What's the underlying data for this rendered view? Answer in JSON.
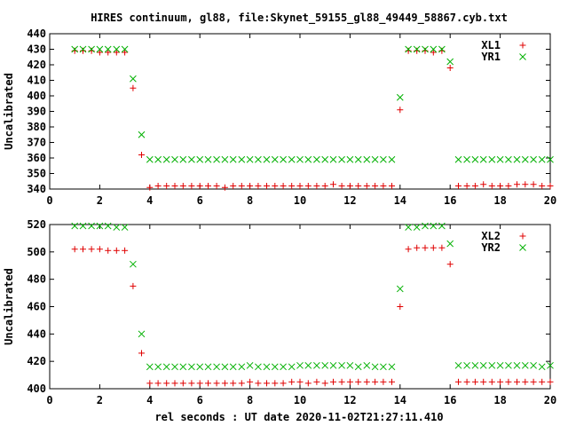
{
  "chart_data": {
    "title": "HIRES continuum, gl88, file:Skynet_59155_gl88_49449_58867.cyb.txt",
    "xlabel": "rel seconds : UT date 2020-11-02T21:27:11.410",
    "panels": [
      {
        "type": "scatter",
        "ylabel": "Uncalibrated",
        "xlim": [
          0,
          20
        ],
        "ylim": [
          340,
          440
        ],
        "xticks": [
          0,
          2,
          4,
          6,
          8,
          10,
          12,
          14,
          16,
          18,
          20
        ],
        "yticks": [
          340,
          350,
          360,
          370,
          380,
          390,
          400,
          410,
          420,
          430,
          440
        ],
        "grid": false,
        "legend_position": "top-right",
        "series": [
          {
            "name": "XL1",
            "marker": "plus",
            "color": "#e00000",
            "x": [
              1.0,
              1.33,
              1.67,
              2.0,
              2.33,
              2.67,
              3.0,
              3.33,
              3.67,
              4.0,
              4.33,
              4.67,
              5.0,
              5.33,
              5.67,
              6.0,
              6.33,
              6.67,
              7.0,
              7.33,
              7.67,
              8.0,
              8.33,
              8.67,
              9.0,
              9.33,
              9.67,
              10.0,
              10.33,
              10.67,
              11.0,
              11.33,
              11.67,
              12.0,
              12.33,
              12.67,
              13.0,
              13.33,
              13.67,
              14.0,
              14.33,
              14.67,
              15.0,
              15.33,
              15.67,
              16.0,
              16.33,
              16.67,
              17.0,
              17.33,
              17.67,
              18.0,
              18.33,
              18.67,
              19.0,
              19.33,
              19.67,
              20.0
            ],
            "y": [
              429,
              429,
              429,
              428,
              428,
              428,
              428,
              405,
              362,
              341,
              342,
              342,
              342,
              342,
              342,
              342,
              342,
              342,
              341,
              342,
              342,
              342,
              342,
              342,
              342,
              342,
              342,
              342,
              342,
              342,
              342,
              343,
              342,
              342,
              342,
              342,
              342,
              342,
              342,
              391,
              429,
              429,
              429,
              428,
              429,
              418,
              342,
              342,
              342,
              343,
              342,
              342,
              342,
              343,
              343,
              343,
              342,
              342
            ]
          },
          {
            "name": "YR1",
            "marker": "cross",
            "color": "#00b000",
            "x": [
              1.0,
              1.33,
              1.67,
              2.0,
              2.33,
              2.67,
              3.0,
              3.33,
              3.67,
              4.0,
              4.33,
              4.67,
              5.0,
              5.33,
              5.67,
              6.0,
              6.33,
              6.67,
              7.0,
              7.33,
              7.67,
              8.0,
              8.33,
              8.67,
              9.0,
              9.33,
              9.67,
              10.0,
              10.33,
              10.67,
              11.0,
              11.33,
              11.67,
              12.0,
              12.33,
              12.67,
              13.0,
              13.33,
              13.67,
              14.0,
              14.33,
              14.67,
              15.0,
              15.33,
              15.67,
              16.0,
              16.33,
              16.67,
              17.0,
              17.33,
              17.67,
              18.0,
              18.33,
              18.67,
              19.0,
              19.33,
              19.67,
              20.0
            ],
            "y": [
              430,
              430,
              430,
              430,
              430,
              430,
              430,
              411,
              375,
              359,
              359,
              359,
              359,
              359,
              359,
              359,
              359,
              359,
              359,
              359,
              359,
              359,
              359,
              359,
              359,
              359,
              359,
              359,
              359,
              359,
              359,
              359,
              359,
              359,
              359,
              359,
              359,
              359,
              359,
              399,
              430,
              430,
              430,
              430,
              430,
              422,
              359,
              359,
              359,
              359,
              359,
              359,
              359,
              359,
              359,
              359,
              359,
              359
            ]
          }
        ]
      },
      {
        "type": "scatter",
        "ylabel": "Uncalibrated",
        "xlim": [
          0,
          20
        ],
        "ylim": [
          400,
          520
        ],
        "xticks": [
          0,
          2,
          4,
          6,
          8,
          10,
          12,
          14,
          16,
          18,
          20
        ],
        "yticks": [
          400,
          420,
          440,
          460,
          480,
          500,
          520
        ],
        "grid": false,
        "legend_position": "top-right",
        "series": [
          {
            "name": "XL2",
            "marker": "plus",
            "color": "#e00000",
            "x": [
              1.0,
              1.33,
              1.67,
              2.0,
              2.33,
              2.67,
              3.0,
              3.33,
              3.67,
              4.0,
              4.33,
              4.67,
              5.0,
              5.33,
              5.67,
              6.0,
              6.33,
              6.67,
              7.0,
              7.33,
              7.67,
              8.0,
              8.33,
              8.67,
              9.0,
              9.33,
              9.67,
              10.0,
              10.33,
              10.67,
              11.0,
              11.33,
              11.67,
              12.0,
              12.33,
              12.67,
              13.0,
              13.33,
              13.67,
              14.0,
              14.33,
              14.67,
              15.0,
              15.33,
              15.67,
              16.0,
              16.33,
              16.67,
              17.0,
              17.33,
              17.67,
              18.0,
              18.33,
              18.67,
              19.0,
              19.33,
              19.67,
              20.0
            ],
            "y": [
              502,
              502,
              502,
              502,
              501,
              501,
              501,
              475,
              426,
              404,
              404,
              404,
              404,
              404,
              404,
              404,
              404,
              404,
              404,
              404,
              404,
              405,
              404,
              404,
              404,
              404,
              405,
              405,
              404,
              405,
              404,
              405,
              405,
              405,
              405,
              405,
              405,
              405,
              405,
              460,
              502,
              503,
              503,
              503,
              503,
              491,
              405,
              405,
              405,
              405,
              405,
              405,
              405,
              405,
              405,
              405,
              405,
              405
            ]
          },
          {
            "name": "YR2",
            "marker": "cross",
            "color": "#00b000",
            "x": [
              1.0,
              1.33,
              1.67,
              2.0,
              2.33,
              2.67,
              3.0,
              3.33,
              3.67,
              4.0,
              4.33,
              4.67,
              5.0,
              5.33,
              5.67,
              6.0,
              6.33,
              6.67,
              7.0,
              7.33,
              7.67,
              8.0,
              8.33,
              8.67,
              9.0,
              9.33,
              9.67,
              10.0,
              10.33,
              10.67,
              11.0,
              11.33,
              11.67,
              12.0,
              12.33,
              12.67,
              13.0,
              13.33,
              13.67,
              14.0,
              14.33,
              14.67,
              15.0,
              15.33,
              15.67,
              16.0,
              16.33,
              16.67,
              17.0,
              17.33,
              17.67,
              18.0,
              18.33,
              18.67,
              19.0,
              19.33,
              19.67,
              20.0
            ],
            "y": [
              519,
              519,
              519,
              519,
              519,
              518,
              518,
              491,
              440,
              416,
              416,
              416,
              416,
              416,
              416,
              416,
              416,
              416,
              416,
              416,
              416,
              417,
              416,
              416,
              416,
              416,
              416,
              417,
              417,
              417,
              417,
              417,
              417,
              417,
              416,
              417,
              416,
              416,
              416,
              473,
              518,
              518,
              519,
              519,
              519,
              506,
              417,
              417,
              417,
              417,
              417,
              417,
              417,
              417,
              417,
              417,
              416,
              417
            ]
          }
        ]
      }
    ]
  }
}
